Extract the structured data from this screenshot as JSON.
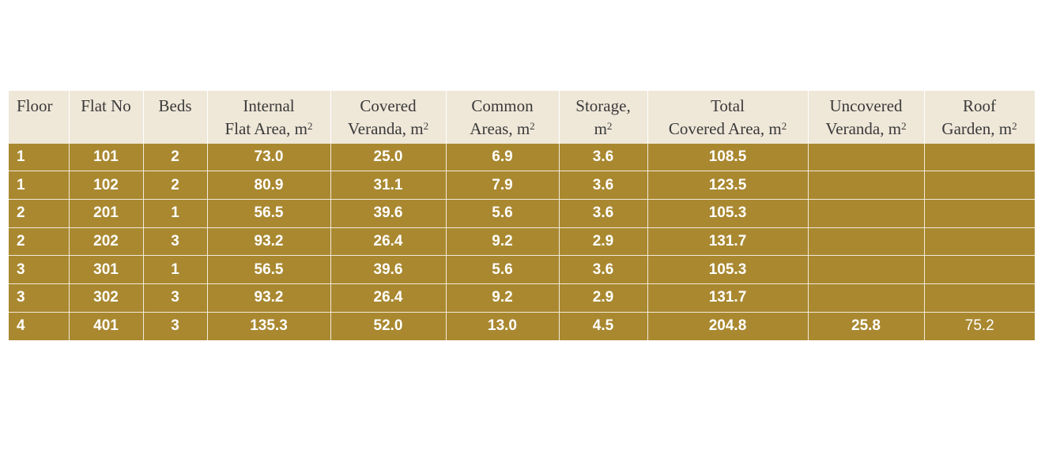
{
  "columns": [
    {
      "line1": "Floor",
      "line2": ""
    },
    {
      "line1": "Flat No",
      "line2": ""
    },
    {
      "line1": "Beds",
      "line2": ""
    },
    {
      "line1": "Internal",
      "line2": "Flat Area, m",
      "sup": "2"
    },
    {
      "line1": "Covered",
      "line2": "Veranda, m",
      "sup": "2"
    },
    {
      "line1": "Common",
      "line2": "Areas, m",
      "sup": "2"
    },
    {
      "line1": "Storage,",
      "line2": "m",
      "sup": "2"
    },
    {
      "line1": "Total",
      "line2": "Covered Area, m",
      "sup": "2"
    },
    {
      "line1": "Uncovered",
      "line2": "Veranda, m",
      "sup": "2"
    },
    {
      "line1": "Roof",
      "line2": "Garden, m",
      "sup": "2"
    }
  ],
  "rows": [
    [
      "1",
      "101",
      "2",
      "73.0",
      "25.0",
      "6.9",
      "3.6",
      "108.5",
      "",
      ""
    ],
    [
      "1",
      "102",
      "2",
      "80.9",
      "31.1",
      "7.9",
      "3.6",
      "123.5",
      "",
      ""
    ],
    [
      "2",
      "201",
      "1",
      "56.5",
      "39.6",
      "5.6",
      "3.6",
      "105.3",
      "",
      ""
    ],
    [
      "2",
      "202",
      "3",
      "93.2",
      "26.4",
      "9.2",
      "2.9",
      "131.7",
      "",
      ""
    ],
    [
      "3",
      "301",
      "1",
      "56.5",
      "39.6",
      "5.6",
      "3.6",
      "105.3",
      "",
      ""
    ],
    [
      "3",
      "302",
      "3",
      "93.2",
      "26.4",
      "9.2",
      "2.9",
      "131.7",
      "",
      ""
    ],
    [
      "4",
      "401",
      "3",
      "135.3",
      "52.0",
      "13.0",
      "4.5",
      "204.8",
      "25.8",
      "75.2"
    ]
  ],
  "colors": {
    "header_bg": "#efe7d8",
    "body_bg": "#a98830",
    "body_text": "#ffffff"
  }
}
